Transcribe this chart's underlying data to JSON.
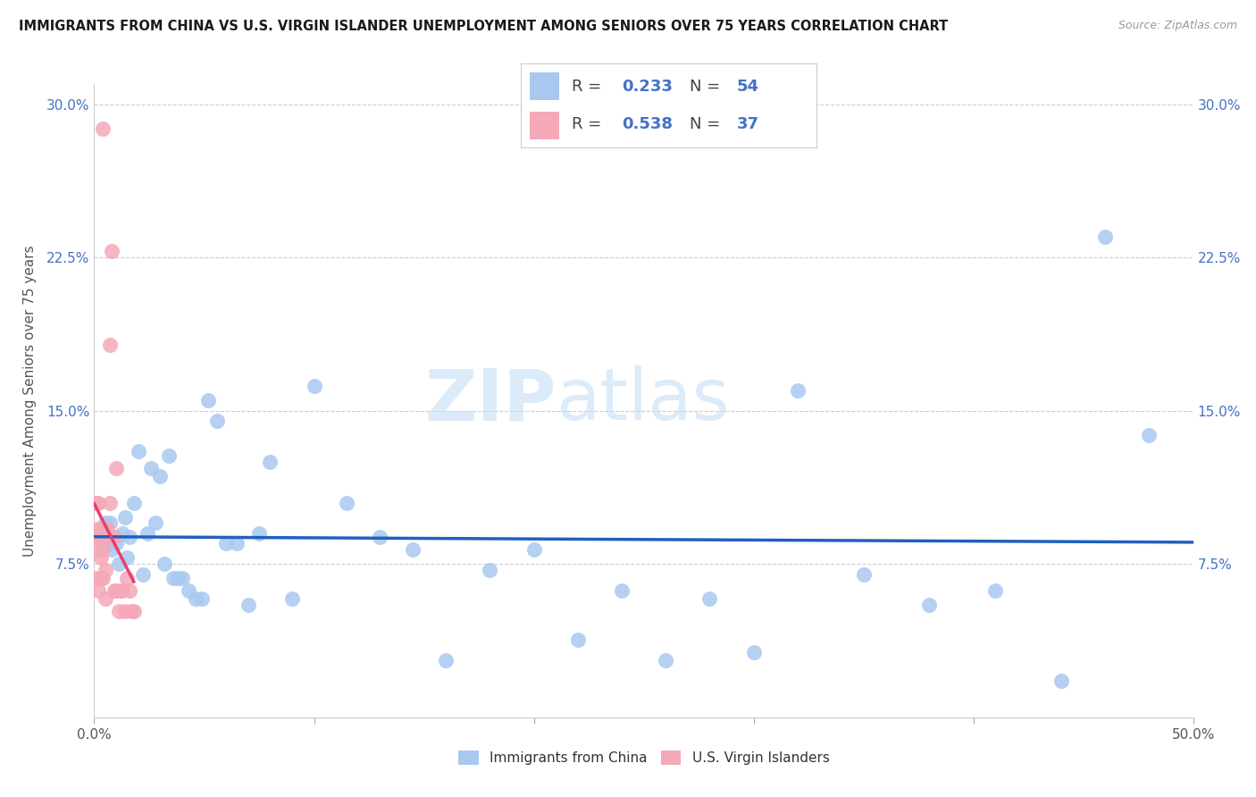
{
  "title": "IMMIGRANTS FROM CHINA VS U.S. VIRGIN ISLANDER UNEMPLOYMENT AMONG SENIORS OVER 75 YEARS CORRELATION CHART",
  "source": "Source: ZipAtlas.com",
  "ylabel": "Unemployment Among Seniors over 75 years",
  "legend_label_blue": "Immigrants from China",
  "legend_label_pink": "U.S. Virgin Islanders",
  "R_blue": "0.233",
  "N_blue": "54",
  "R_pink": "0.538",
  "N_pink": "37",
  "xlim": [
    0.0,
    0.5
  ],
  "ylim": [
    0.0,
    0.31
  ],
  "xtick_positions": [
    0.0,
    0.1,
    0.2,
    0.3,
    0.4,
    0.5
  ],
  "xtick_labels_show": [
    "0.0%",
    "",
    "",
    "",
    "",
    "50.0%"
  ],
  "ytick_positions": [
    0.0,
    0.075,
    0.15,
    0.225,
    0.3
  ],
  "ytick_labels": [
    "",
    "7.5%",
    "15.0%",
    "22.5%",
    "30.0%"
  ],
  "color_blue": "#A8C8F0",
  "color_pink": "#F4A8B8",
  "trendline_blue": "#2060C0",
  "trendline_pink": "#E8406A",
  "watermark_zip": "ZIP",
  "watermark_atlas": "atlas",
  "scatter_blue_x": [
    0.004,
    0.005,
    0.006,
    0.007,
    0.008,
    0.009,
    0.01,
    0.011,
    0.013,
    0.014,
    0.015,
    0.016,
    0.018,
    0.02,
    0.022,
    0.024,
    0.026,
    0.028,
    0.03,
    0.032,
    0.034,
    0.036,
    0.038,
    0.04,
    0.043,
    0.046,
    0.049,
    0.052,
    0.056,
    0.06,
    0.065,
    0.07,
    0.075,
    0.08,
    0.09,
    0.1,
    0.115,
    0.13,
    0.145,
    0.16,
    0.18,
    0.2,
    0.22,
    0.24,
    0.26,
    0.28,
    0.3,
    0.32,
    0.35,
    0.38,
    0.41,
    0.44,
    0.46,
    0.48
  ],
  "scatter_blue_y": [
    0.09,
    0.095,
    0.085,
    0.095,
    0.082,
    0.088,
    0.085,
    0.075,
    0.09,
    0.098,
    0.078,
    0.088,
    0.105,
    0.13,
    0.07,
    0.09,
    0.122,
    0.095,
    0.118,
    0.075,
    0.128,
    0.068,
    0.068,
    0.068,
    0.062,
    0.058,
    0.058,
    0.155,
    0.145,
    0.085,
    0.085,
    0.055,
    0.09,
    0.125,
    0.058,
    0.162,
    0.105,
    0.088,
    0.082,
    0.028,
    0.072,
    0.082,
    0.038,
    0.062,
    0.028,
    0.058,
    0.032,
    0.16,
    0.07,
    0.055,
    0.062,
    0.018,
    0.235,
    0.138
  ],
  "scatter_pink_x": [
    0.0005,
    0.0005,
    0.0008,
    0.001,
    0.001,
    0.001,
    0.0015,
    0.002,
    0.002,
    0.002,
    0.002,
    0.003,
    0.003,
    0.003,
    0.004,
    0.004,
    0.004,
    0.005,
    0.005,
    0.006,
    0.006,
    0.007,
    0.007,
    0.008,
    0.008,
    0.009,
    0.009,
    0.01,
    0.01,
    0.011,
    0.012,
    0.013,
    0.014,
    0.015,
    0.016,
    0.017,
    0.018
  ],
  "scatter_pink_y": [
    0.105,
    0.082,
    0.068,
    0.092,
    0.088,
    0.105,
    0.088,
    0.088,
    0.088,
    0.105,
    0.062,
    0.068,
    0.078,
    0.092,
    0.068,
    0.082,
    0.288,
    0.072,
    0.058,
    0.092,
    0.088,
    0.105,
    0.182,
    0.088,
    0.228,
    0.088,
    0.062,
    0.062,
    0.122,
    0.052,
    0.062,
    0.062,
    0.052,
    0.068,
    0.062,
    0.052,
    0.052
  ]
}
